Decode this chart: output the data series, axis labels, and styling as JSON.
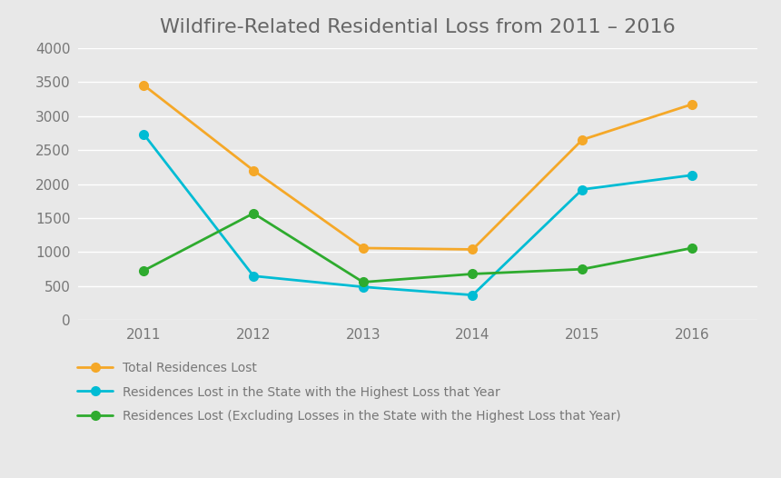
{
  "title": "Wildfire-Related Residential Loss from 2011 – 2016",
  "years": [
    2011,
    2012,
    2013,
    2014,
    2015,
    2016
  ],
  "series": [
    {
      "label": "Total Residences Lost",
      "values": [
        3450,
        2200,
        1060,
        1040,
        2650,
        3170
      ],
      "color": "#f5a828",
      "marker": "o",
      "linewidth": 2.0,
      "markersize": 7,
      "zorder": 3
    },
    {
      "label": "Residences Lost in the State with the Highest Loss that Year",
      "values": [
        2730,
        650,
        490,
        370,
        1920,
        2130
      ],
      "color": "#00bcd4",
      "marker": "o",
      "linewidth": 2.0,
      "markersize": 7,
      "zorder": 3
    },
    {
      "label": "Residences Lost (Excluding Losses in the State with the Highest Loss that Year)",
      "values": [
        730,
        1570,
        560,
        680,
        750,
        1060
      ],
      "color": "#2eab2e",
      "marker": "o",
      "linewidth": 2.0,
      "markersize": 7,
      "zorder": 3
    }
  ],
  "ylim": [
    0,
    4000
  ],
  "yticks": [
    0,
    500,
    1000,
    1500,
    2000,
    2500,
    3000,
    3500,
    4000
  ],
  "xlim": [
    2010.4,
    2016.6
  ],
  "plot_bg_color": "#e8e8e8",
  "fig_bg_color": "#e8e8e8",
  "grid_color": "#ffffff",
  "tick_color": "#777777",
  "title_color": "#666666",
  "title_fontsize": 16,
  "tick_fontsize": 11,
  "legend_fontsize": 10
}
